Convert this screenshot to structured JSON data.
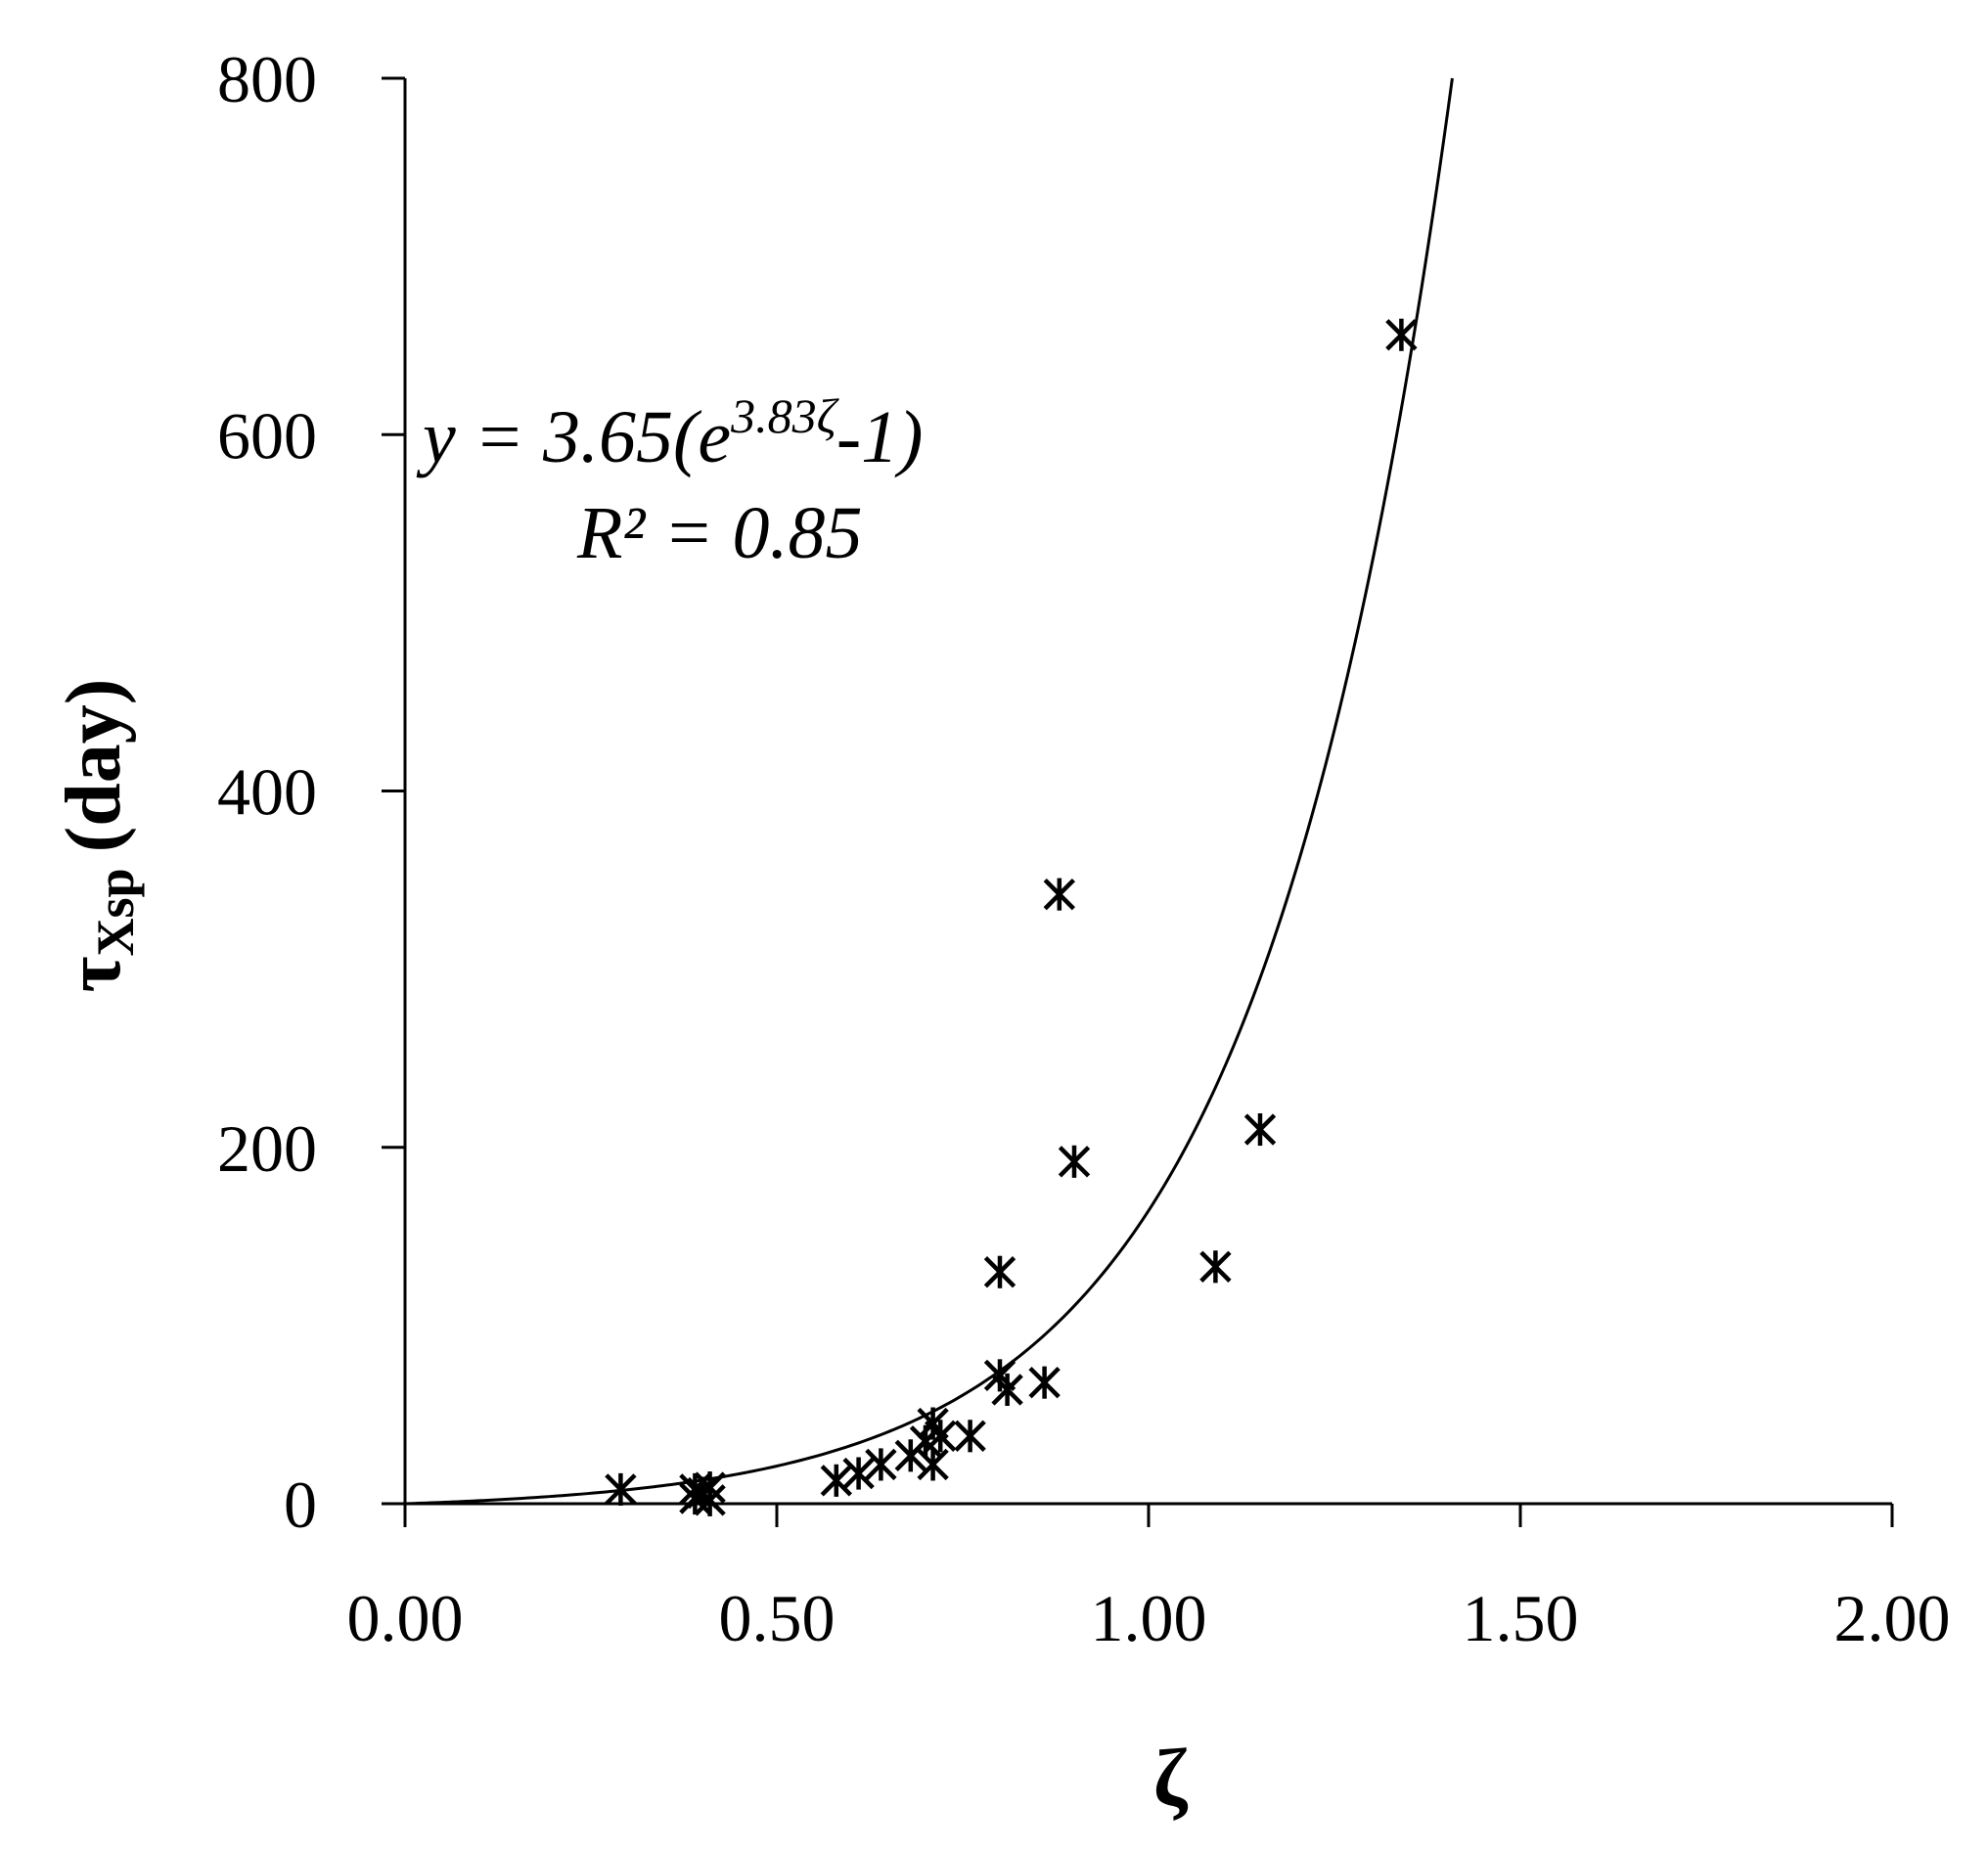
{
  "chart_data": {
    "type": "scatter",
    "xlabel": "ζ",
    "ylabel": {
      "symbol": "τ",
      "subscript": "Xsp",
      "unit": "(day)"
    },
    "xlim": [
      0,
      2
    ],
    "ylim": [
      0,
      800
    ],
    "grid": false,
    "legend": "none",
    "x_ticks": [
      0,
      0.5,
      1,
      1.5,
      2
    ],
    "x_tick_labels": [
      "0.00",
      "0.50",
      "1.00",
      "1.50",
      "2.00"
    ],
    "y_ticks": [
      0,
      200,
      400,
      600,
      800
    ],
    "y_tick_labels": [
      "0",
      "200",
      "400",
      "600",
      "800"
    ],
    "series": [
      {
        "marker": "asterisk",
        "color": "#000000",
        "points": [
          {
            "x": 0.29,
            "y": 8
          },
          {
            "x": 0.39,
            "y": 8
          },
          {
            "x": 0.39,
            "y": 3
          },
          {
            "x": 0.4,
            "y": 6
          },
          {
            "x": 0.41,
            "y": 9
          },
          {
            "x": 0.41,
            "y": 2
          },
          {
            "x": 0.58,
            "y": 13
          },
          {
            "x": 0.61,
            "y": 17
          },
          {
            "x": 0.64,
            "y": 22
          },
          {
            "x": 0.68,
            "y": 27
          },
          {
            "x": 0.7,
            "y": 35
          },
          {
            "x": 0.71,
            "y": 22
          },
          {
            "x": 0.71,
            "y": 45
          },
          {
            "x": 0.72,
            "y": 38
          },
          {
            "x": 0.76,
            "y": 38
          },
          {
            "x": 0.8,
            "y": 72
          },
          {
            "x": 0.8,
            "y": 130
          },
          {
            "x": 0.81,
            "y": 64
          },
          {
            "x": 0.86,
            "y": 68
          },
          {
            "x": 0.88,
            "y": 342
          },
          {
            "x": 0.9,
            "y": 192
          },
          {
            "x": 1.09,
            "y": 133
          },
          {
            "x": 1.15,
            "y": 210
          },
          {
            "x": 1.34,
            "y": 656
          }
        ]
      }
    ],
    "fit": {
      "a": 3.65,
      "b": 3.83,
      "color": "#000000"
    },
    "annotation": {
      "equation_prefix": "y = 3.65(e",
      "equation_exponent": "3.83ζ",
      "equation_suffix": "-1)",
      "r_squared": "R² = 0.85"
    }
  }
}
